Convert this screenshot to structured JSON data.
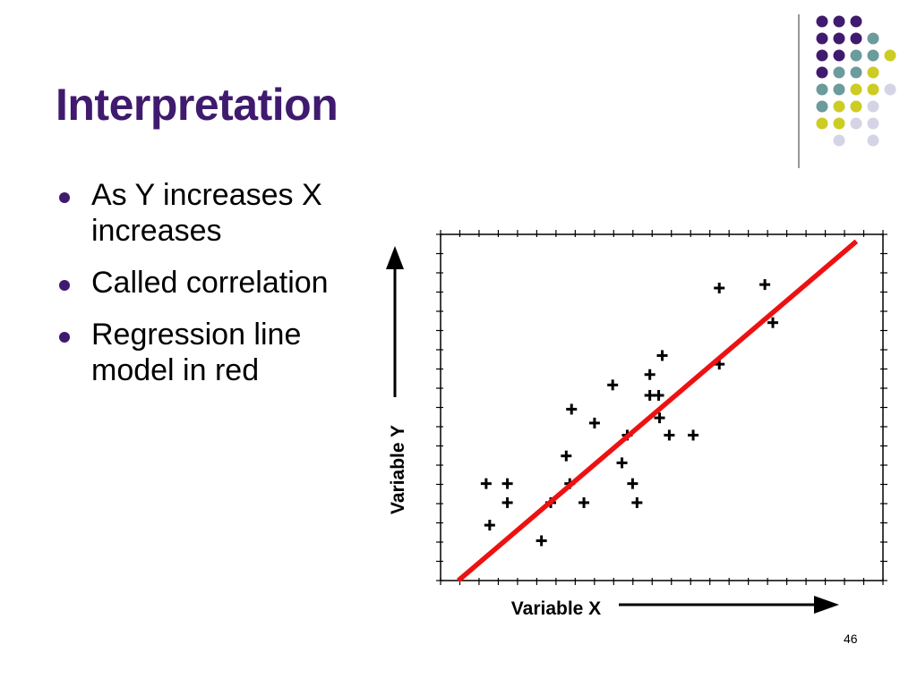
{
  "slide": {
    "title": "Interpretation",
    "bullets": [
      "As Y increases X increases",
      "Called correlation",
      "Regression line model in red"
    ],
    "number": "46"
  },
  "colors": {
    "title": "#3f1a6e",
    "regression_line": "#ee1111",
    "markers": "#000000",
    "deco_dots": [
      "#3f1a6e",
      "#6b9b9b",
      "#cccc22",
      "#d4d4e6"
    ]
  },
  "chart_data": {
    "type": "scatter",
    "title": "",
    "xlabel": "Variable X",
    "ylabel": "Variable Y",
    "xlim": [
      0,
      100
    ],
    "ylim": [
      0,
      100
    ],
    "grid": false,
    "legend": "none",
    "series": [
      {
        "marker": "plus",
        "x": [
          10.3,
          11.1,
          15.1,
          15.1,
          22.8,
          24.9,
          28.4,
          29.2,
          29.6,
          32.4,
          34.8,
          38.9,
          41.0,
          42.2,
          43.4,
          44.4,
          47.3,
          47.3,
          49.3,
          49.5,
          50.1,
          51.7,
          57.1,
          63.0,
          63.0,
          73.3,
          75.1
        ],
        "y": [
          28.0,
          16.0,
          22.5,
          28.0,
          11.5,
          22.5,
          36.0,
          28.0,
          49.5,
          22.5,
          45.5,
          56.5,
          34.0,
          42.0,
          28.0,
          22.5,
          53.5,
          59.5,
          53.5,
          47.0,
          65.0,
          42.0,
          42.0,
          62.5,
          84.5,
          85.5,
          74.5
        ]
      }
    ],
    "regression_line": {
      "x": [
        4,
        94
      ],
      "y": [
        0,
        98
      ]
    }
  }
}
